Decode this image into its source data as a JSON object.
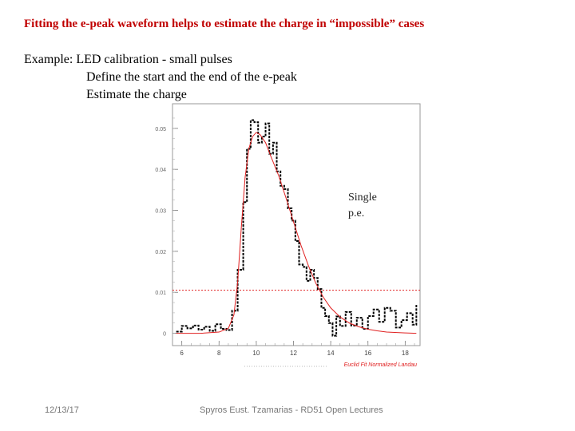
{
  "slide": {
    "title": "Fitting the e-peak waveform helps to estimate the charge in “impossible” cases",
    "lines": [
      "Example: LED calibration - small pulses",
      "Define the start and the end of the e-peak",
      "Estimate the charge"
    ],
    "annotation": [
      "Single",
      "p.e."
    ],
    "footer_date": "12/13/17",
    "footer_center": "Spyros Eust. Tzamarias - RD51 Open Lectures"
  },
  "chart_data": {
    "type": "line",
    "x_ticks": [
      "6",
      "8",
      "10",
      "12",
      "14",
      "16",
      "18"
    ],
    "y_ticks": [
      "0",
      "0.01",
      "0.02",
      "0.03",
      "0.04",
      "0.05"
    ],
    "xlim": [
      5.5,
      18.8
    ],
    "ylim": [
      -0.003,
      0.056
    ],
    "caption": "Euclid Fit Normalized Landau",
    "threshold": 0.0105,
    "series": [
      {
        "style": "data",
        "color": "#000000",
        "x": [
          5.7,
          6.0,
          6.3,
          6.6,
          6.9,
          7.2,
          7.5,
          7.8,
          8.1,
          8.4,
          8.7,
          9.0,
          9.3,
          9.5,
          9.7,
          9.9,
          10.1,
          10.3,
          10.5,
          10.7,
          10.9,
          11.1,
          11.3,
          11.5,
          11.7,
          11.9,
          12.1,
          12.3,
          12.5,
          12.7,
          12.9,
          13.1,
          13.3,
          13.5,
          13.7,
          13.9,
          14.1,
          14.3,
          14.5,
          14.8,
          15.1,
          15.4,
          15.7,
          16.0,
          16.3,
          16.6,
          16.9,
          17.2,
          17.5,
          17.8,
          18.1,
          18.4,
          18.6
        ],
        "y": [
          0.0004,
          0.0018,
          0.0012,
          0.0019,
          0.0009,
          0.0016,
          0.0006,
          0.0022,
          0.0011,
          0.0008,
          0.0055,
          0.0155,
          0.032,
          0.045,
          0.052,
          0.0515,
          0.0465,
          0.048,
          0.0512,
          0.0438,
          0.0465,
          0.0395,
          0.036,
          0.0352,
          0.0305,
          0.0275,
          0.0225,
          0.0168,
          0.0162,
          0.0128,
          0.0155,
          0.0135,
          0.0108,
          0.0062,
          0.0042,
          0.0025,
          -0.0006,
          0.0041,
          0.0018,
          0.0052,
          0.0019,
          0.0038,
          0.0011,
          0.0042,
          0.0058,
          0.0028,
          0.0062,
          0.0055,
          0.0014,
          0.0032,
          0.0049,
          0.0021,
          0.0069
        ]
      },
      {
        "style": "fit",
        "color": "#e02020",
        "x": [
          5.7,
          7.0,
          8.0,
          8.5,
          8.8,
          9.0,
          9.2,
          9.4,
          9.6,
          9.8,
          10.0,
          10.2,
          10.5,
          10.8,
          11.2,
          11.6,
          12.0,
          12.4,
          12.8,
          13.2,
          13.6,
          14.0,
          14.5,
          15.0,
          15.5,
          16.0,
          16.5,
          17.0,
          18.0,
          18.6
        ],
        "y": [
          0,
          0,
          0.0003,
          0.0012,
          0.0045,
          0.0125,
          0.026,
          0.038,
          0.045,
          0.048,
          0.049,
          0.0485,
          0.0465,
          0.043,
          0.0385,
          0.033,
          0.0272,
          0.0215,
          0.0165,
          0.0122,
          0.0088,
          0.0062,
          0.004,
          0.0025,
          0.0016,
          0.001,
          0.0006,
          0.0003,
          0.0001,
          0
        ]
      }
    ]
  }
}
